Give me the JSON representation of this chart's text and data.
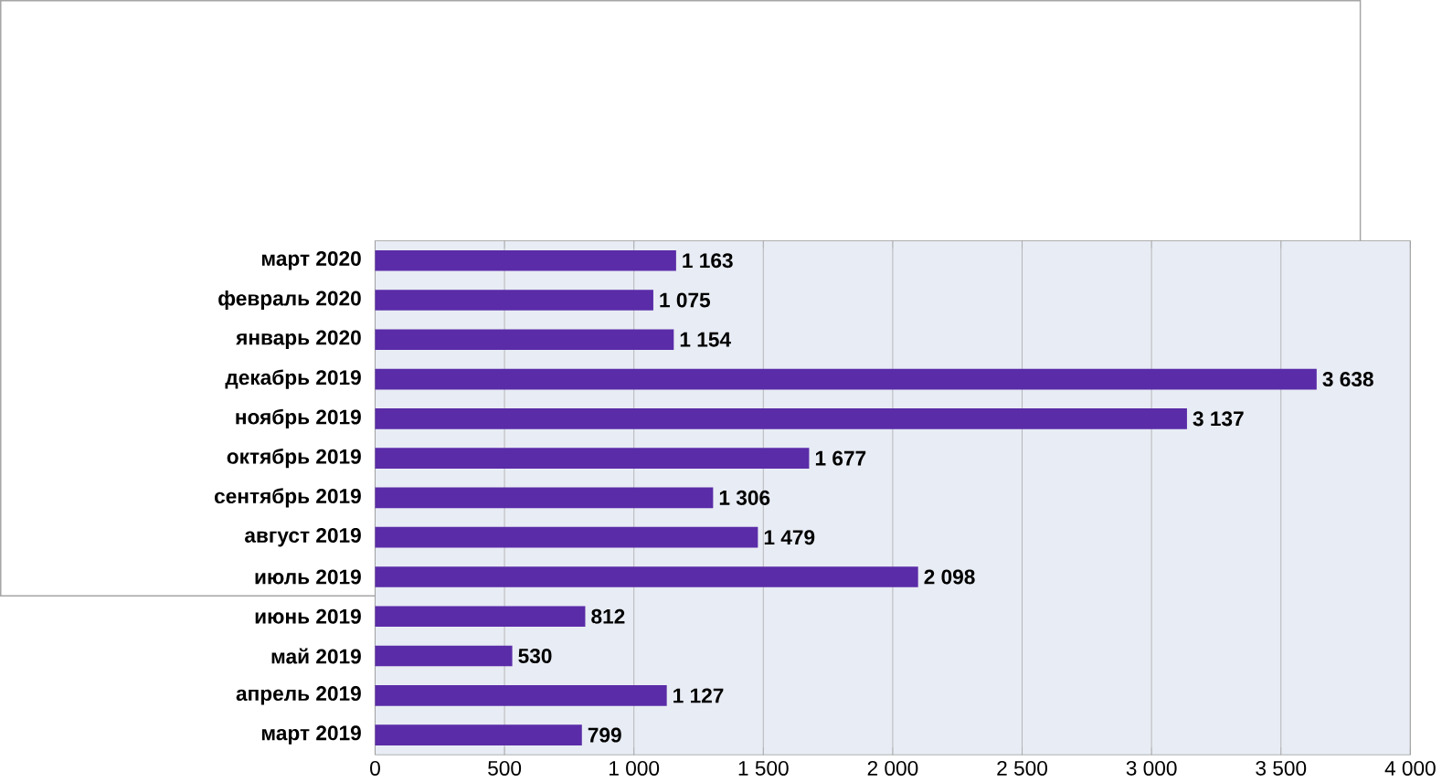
{
  "chart_data": {
    "type": "bar",
    "orientation": "horizontal",
    "categories": [
      "март 2020",
      "февраль 2020",
      "январь 2020",
      "декабрь 2019",
      "ноябрь 2019",
      "октябрь 2019",
      "сентябрь 2019",
      "август 2019",
      "июль 2019",
      "июнь 2019",
      "май 2019",
      "апрель 2019",
      "март 2019"
    ],
    "values": [
      1163,
      1075,
      1154,
      3638,
      3137,
      1677,
      1306,
      1479,
      2098,
      812,
      530,
      1127,
      799
    ],
    "value_labels": [
      "1 163",
      "1 075",
      "1 154",
      "3 638",
      "3 137",
      "1 677",
      "1 306",
      "1 479",
      "2 098",
      "812",
      "530",
      "1 127",
      "799"
    ],
    "color": "#5a2ca8",
    "xlim": [
      0,
      4000
    ],
    "xticks": [
      0,
      500,
      {
        "value": 1000,
        "label": "1 000"
      },
      {
        "value": 1500,
        "label": "1 500"
      },
      {
        "value": 2000,
        "label": "2 000"
      },
      {
        "value": 2500,
        "label": "2 500"
      },
      {
        "value": 3000,
        "label": "3 000"
      },
      {
        "value": 3500,
        "label": "3 500"
      },
      {
        "value": 4000,
        "label": "4 000"
      }
    ],
    "grid": "x"
  }
}
